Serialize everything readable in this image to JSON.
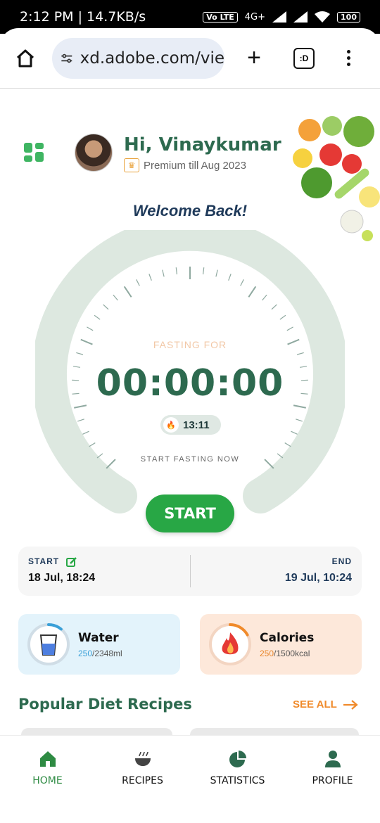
{
  "status_bar": {
    "time_speed": "2:12 PM | 14.7KB/s",
    "battery": "100",
    "volte": "Vo LTE",
    "network": "4G+"
  },
  "browser": {
    "url": "xd.adobe.com/vie",
    "tabs_label": ":D"
  },
  "user": {
    "greeting": "Hi, Vinaykumar",
    "premium_text": "Premium till Aug 2023"
  },
  "welcome": "Welcome Back!",
  "fasting": {
    "label": "FASTING FOR",
    "timer": "00:00:00",
    "pill_time": "13:11",
    "hint": "START FASTING NOW",
    "button": "START"
  },
  "schedule": {
    "start_label": "START",
    "start_value": "18 Jul, 18:24",
    "end_label": "END",
    "end_value": "19 Jul, 10:24"
  },
  "water": {
    "title": "Water",
    "current": "250",
    "total": "/2348ml",
    "progress": 0.11
  },
  "calories": {
    "title": "Calories",
    "current": "250",
    "total": "/1500kcal",
    "progress": 0.17
  },
  "recipes": {
    "title": "Popular Diet Recipes",
    "see_all": "SEE ALL"
  },
  "nav": [
    {
      "label": "HOME",
      "icon": "home-icon"
    },
    {
      "label": "RECIPES",
      "icon": "bowl-icon"
    },
    {
      "label": "STATISTICS",
      "icon": "pie-chart-icon"
    },
    {
      "label": "PROFILE",
      "icon": "person-icon"
    }
  ],
  "colors": {
    "primary": "#2d6a4f",
    "accent_green": "#28a745",
    "orange": "#f08a2a",
    "water_blue": "#3aa0d8",
    "navy": "#1f3a5a"
  }
}
